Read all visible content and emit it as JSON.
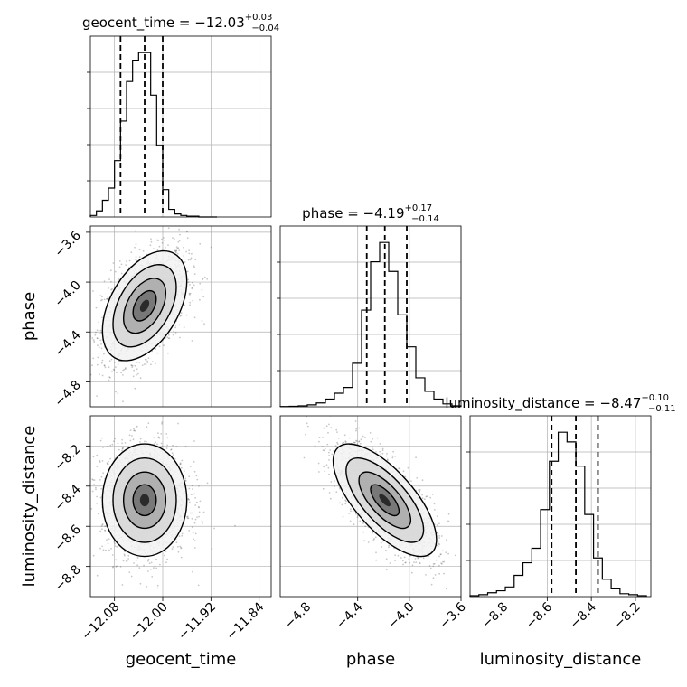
{
  "chart_data": [
    {
      "type": "histogram",
      "panel": "geocent_time-marginal",
      "title_name": "geocent_time",
      "title_eq": " = ",
      "title_median": "−12.03",
      "title_plus": "+0.03",
      "title_minus": "−0.04",
      "median": -12.03,
      "quantiles": [
        -12.07,
        -12.03,
        -12.0
      ],
      "xlim": [
        -12.12,
        -11.82
      ],
      "grid": true,
      "bins": [
        -12.12,
        -12.11,
        -12.1,
        -12.09,
        -12.08,
        -12.07,
        -12.06,
        -12.05,
        -12.04,
        -12.03,
        -12.02,
        -12.01,
        -12.0,
        -11.99,
        -11.98,
        -11.97,
        -11.96,
        -11.95,
        -11.94,
        -11.93,
        -11.92,
        -11.91
      ],
      "counts": [
        1,
        4,
        11,
        19,
        37,
        63,
        89,
        103,
        108,
        108,
        80,
        47,
        18,
        5,
        2,
        1,
        0.5,
        0.5,
        0,
        0,
        0
      ]
    },
    {
      "type": "histogram",
      "panel": "phase-marginal",
      "title_name": "phase",
      "title_eq": " = ",
      "title_median": "−4.19",
      "title_plus": "+0.17",
      "title_minus": "−0.14",
      "median": -4.19,
      "quantiles": [
        -4.33,
        -4.19,
        -4.02
      ],
      "xlim": [
        -5.0,
        -3.6
      ],
      "grid": true,
      "bins": [
        -5.0,
        -4.93,
        -4.86,
        -4.79,
        -4.72,
        -4.65,
        -4.58,
        -4.51,
        -4.44,
        -4.37,
        -4.3,
        -4.23,
        -4.16,
        -4.09,
        -4.02,
        -3.95,
        -3.88,
        -3.81,
        -3.74,
        -3.67,
        -3.6
      ],
      "counts": [
        0.3,
        0.5,
        1,
        2,
        4,
        8,
        14,
        20,
        45,
        100,
        150,
        170,
        140,
        95,
        62,
        30,
        16,
        8,
        3,
        1
      ]
    },
    {
      "type": "histogram",
      "panel": "luminosity_distance-marginal",
      "title_name": "luminosity_distance",
      "title_eq": " = ",
      "title_median": "−8.47",
      "title_plus": "+0.10",
      "title_minus": "−0.11",
      "median": -8.47,
      "quantiles": [
        -8.58,
        -8.47,
        -8.37
      ],
      "xlim": [
        -8.95,
        -8.13
      ],
      "grid": true,
      "bins": [
        -8.95,
        -8.91,
        -8.87,
        -8.83,
        -8.79,
        -8.75,
        -8.71,
        -8.67,
        -8.63,
        -8.59,
        -8.55,
        -8.51,
        -8.47,
        -8.43,
        -8.39,
        -8.35,
        -8.31,
        -8.27,
        -8.23,
        -8.19,
        -8.15
      ],
      "counts": [
        1,
        2,
        4,
        6,
        10,
        22,
        35,
        50,
        90,
        140,
        170,
        160,
        135,
        85,
        40,
        18,
        8,
        3,
        2,
        1
      ]
    },
    {
      "type": "scatter",
      "panel": "phase-vs-geocent_time",
      "xlim": [
        -12.12,
        -11.82
      ],
      "ylim": [
        -5.0,
        -3.55
      ],
      "center": [
        -12.03,
        -4.19
      ],
      "spread": [
        0.035,
        0.22
      ],
      "rho": 0.45,
      "grid": true,
      "contours": true
    },
    {
      "type": "scatter",
      "panel": "luminosity_distance-vs-geocent_time",
      "xlim": [
        -12.12,
        -11.82
      ],
      "ylim": [
        -8.95,
        -8.05
      ],
      "center": [
        -12.03,
        -8.47
      ],
      "spread": [
        0.035,
        0.14
      ],
      "rho": 0.0,
      "grid": true,
      "contours": true
    },
    {
      "type": "scatter",
      "panel": "luminosity_distance-vs-phase",
      "xlim": [
        -5.0,
        -3.6
      ],
      "ylim": [
        -8.95,
        -8.05
      ],
      "center": [
        -4.19,
        -8.47
      ],
      "spread": [
        0.2,
        0.14
      ],
      "rho": -0.7,
      "grid": true,
      "contours": true
    }
  ],
  "axes": {
    "geocent_time": {
      "label": "geocent_time",
      "ticks": [
        -12.08,
        -12.0,
        -11.92,
        -11.84
      ],
      "tick_labels": [
        "−12.08",
        "−12.00",
        "−11.92",
        "−11.84"
      ]
    },
    "phase_x": {
      "label": "phase",
      "ticks": [
        -4.8,
        -4.4,
        -4.0,
        -3.6
      ],
      "tick_labels": [
        "−4.8",
        "−4.4",
        "−4.0",
        "−3.6"
      ]
    },
    "phase_y": {
      "label": "phase",
      "ticks": [
        -3.6,
        -4.0,
        -4.4,
        -4.8
      ],
      "tick_labels": [
        "−3.6",
        "−4.0",
        "−4.4",
        "−4.8"
      ]
    },
    "luminosity_distance_x": {
      "label": "luminosity_distance",
      "ticks": [
        -8.8,
        -8.6,
        -8.4,
        -8.2
      ],
      "tick_labels": [
        "−8.8",
        "−8.6",
        "−8.4",
        "−8.2"
      ]
    },
    "luminosity_distance_y": {
      "label": "luminosity_distance",
      "ticks": [
        -8.2,
        -8.4,
        -8.6,
        -8.8
      ],
      "tick_labels": [
        "−8.2",
        "−8.4",
        "−8.6",
        "−8.8"
      ]
    }
  },
  "colors": {
    "line": "#000000",
    "grid": "#b0b0b0",
    "points": "#4a4a4a"
  }
}
